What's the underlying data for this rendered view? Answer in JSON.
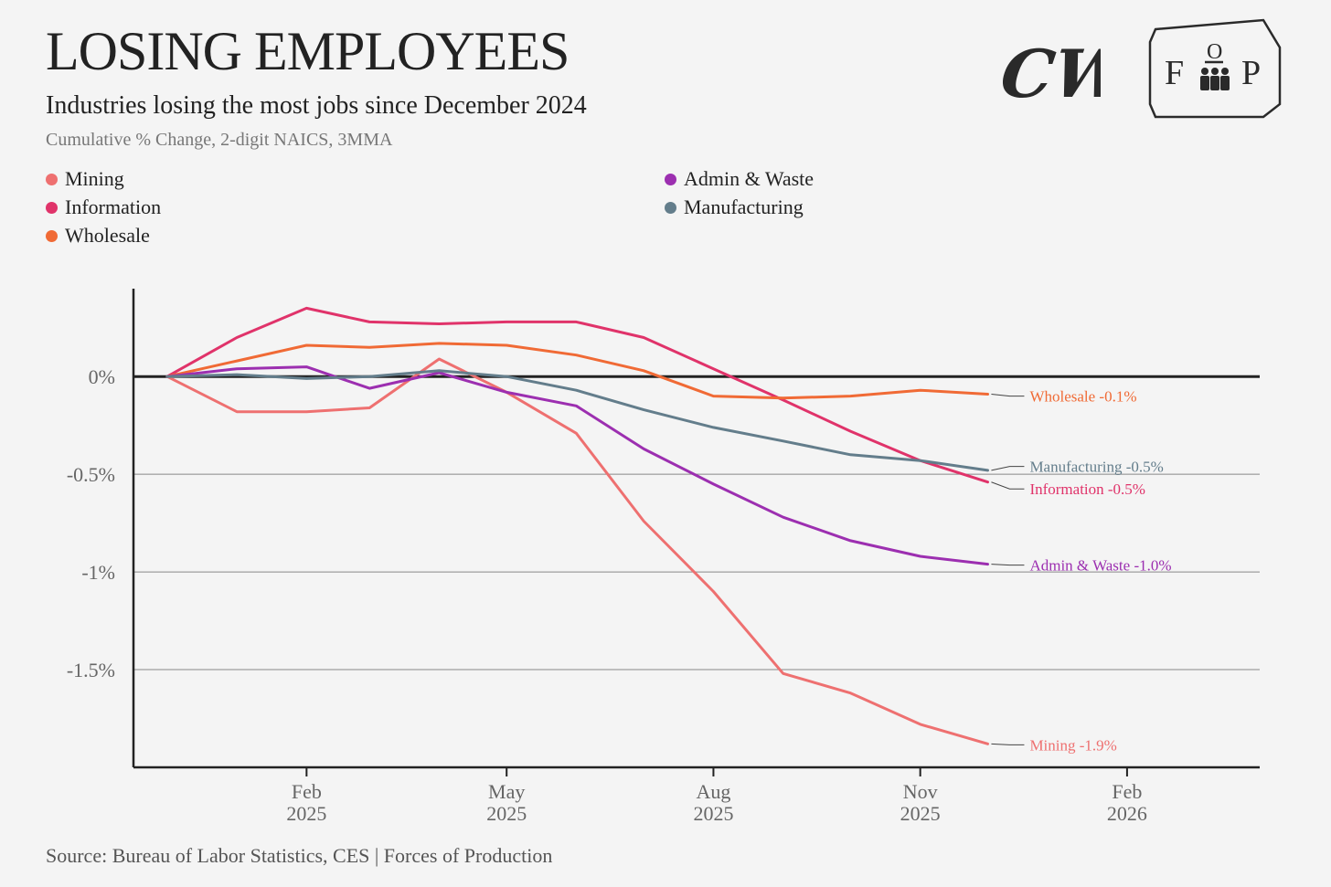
{
  "header": {
    "title": "LOSING EMPLOYEES",
    "subtitle": "Industries losing the most jobs since December 2024",
    "note": "Cumulative % Change, 2-digit NAICS, 3MMA"
  },
  "logos": {
    "left": "CW",
    "right_top": "O",
    "right_left": "F",
    "right_right": "P"
  },
  "legend": {
    "items": [
      {
        "label": "Mining",
        "color": "#ee7070"
      },
      {
        "label": "Information",
        "color": "#e0336a"
      },
      {
        "label": "Wholesale",
        "color": "#f06a35"
      },
      {
        "label": "Admin & Waste",
        "color": "#9c2fb0"
      },
      {
        "label": "Manufacturing",
        "color": "#637d8b"
      }
    ]
  },
  "footer": {
    "source": "Source: Bureau of Labor Statistics, CES | Forces of Production"
  },
  "chart_data": {
    "type": "line",
    "title": "LOSING EMPLOYEES",
    "subtitle": "Industries losing the most jobs since December 2024",
    "xlabel": "",
    "ylabel": "",
    "x": [
      "2024-12",
      "2025-01",
      "2025-02",
      "2025-03",
      "2025-04",
      "2025-05",
      "2025-06",
      "2025-07",
      "2025-08",
      "2025-09",
      "2025-10",
      "2025-11",
      "2025-12"
    ],
    "xlim": [
      "2024-11-16",
      "2026-04-01"
    ],
    "ylim": [
      -2.0,
      0.45
    ],
    "yticks": [
      0,
      -0.5,
      -1,
      -1.5
    ],
    "ytick_labels": [
      "0%",
      "-0.5%",
      "-1%",
      "-1.5%"
    ],
    "xticks": [
      {
        "date": "2025-02",
        "label1": "Feb",
        "label2": "2025"
      },
      {
        "date": "2025-05",
        "label1": "May",
        "label2": "2025"
      },
      {
        "date": "2025-08",
        "label1": "Aug",
        "label2": "2025"
      },
      {
        "date": "2025-11",
        "label1": "Nov",
        "label2": "2025"
      },
      {
        "date": "2026-02",
        "label1": "Feb",
        "label2": "2026"
      }
    ],
    "grid": true,
    "legend_position": "top-left",
    "series": [
      {
        "name": "Mining",
        "color": "#ee7070",
        "end_label": "Mining",
        "end_value": "-1.9%",
        "values": [
          0,
          -0.18,
          -0.18,
          -0.16,
          0.09,
          -0.08,
          -0.29,
          -0.74,
          -1.1,
          -1.52,
          -1.62,
          -1.78,
          -1.88
        ]
      },
      {
        "name": "Information",
        "color": "#e0336a",
        "end_label": "Information",
        "end_value": "-0.5%",
        "values": [
          0,
          0.2,
          0.35,
          0.28,
          0.27,
          0.28,
          0.28,
          0.2,
          0.04,
          -0.12,
          -0.28,
          -0.43,
          -0.54
        ]
      },
      {
        "name": "Wholesale",
        "color": "#f06a35",
        "end_label": "Wholesale",
        "end_value": "-0.1%",
        "values": [
          0,
          0.08,
          0.16,
          0.15,
          0.17,
          0.16,
          0.11,
          0.03,
          -0.1,
          -0.11,
          -0.1,
          -0.07,
          -0.09
        ]
      },
      {
        "name": "Admin & Waste",
        "color": "#9c2fb0",
        "end_label": "Admin & Waste",
        "end_value": "-1.0%",
        "values": [
          0,
          0.04,
          0.05,
          -0.06,
          0.02,
          -0.08,
          -0.15,
          -0.37,
          -0.55,
          -0.72,
          -0.84,
          -0.92,
          -0.96
        ]
      },
      {
        "name": "Manufacturing",
        "color": "#637d8b",
        "end_label": "Manufacturing",
        "end_value": "-0.5%",
        "values": [
          0,
          0.01,
          -0.01,
          0.0,
          0.03,
          0.0,
          -0.07,
          -0.17,
          -0.26,
          -0.33,
          -0.4,
          -0.43,
          -0.48
        ]
      }
    ]
  }
}
